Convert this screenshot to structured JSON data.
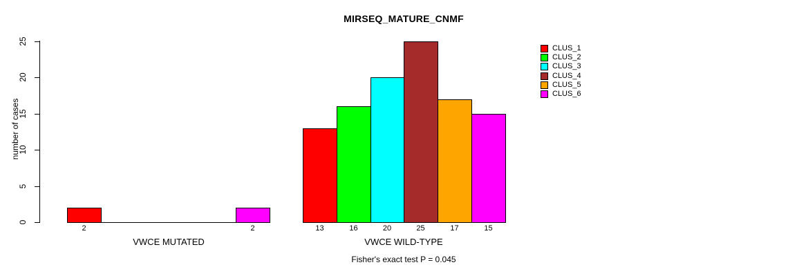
{
  "chart_data": {
    "type": "bar",
    "title": "MIRSEQ_MATURE_CNMF",
    "ylabel": "number of cases",
    "xlabel": "",
    "ylim": [
      0,
      25
    ],
    "yticks": [
      0,
      5,
      10,
      15,
      20,
      25
    ],
    "grid": false,
    "legend_position": "right",
    "legend": [
      {
        "label": "CLUS_1",
        "color": "#FF0000"
      },
      {
        "label": "CLUS_2",
        "color": "#00FF00"
      },
      {
        "label": "CLUS_3",
        "color": "#00FFFF"
      },
      {
        "label": "CLUS_4",
        "color": "#A52A2A"
      },
      {
        "label": "CLUS_5",
        "color": "#FFA500"
      },
      {
        "label": "CLUS_6",
        "color": "#FF00FF"
      }
    ],
    "groups": [
      {
        "label": "VWCE MUTATED",
        "values": [
          2,
          0,
          0,
          0,
          0,
          2
        ],
        "bar_labels": [
          "2",
          "",
          "",
          "",
          "",
          "2"
        ]
      },
      {
        "label": "VWCE WILD-TYPE",
        "values": [
          13,
          16,
          20,
          25,
          17,
          15
        ],
        "bar_labels": [
          "13",
          "16",
          "20",
          "25",
          "17",
          "15"
        ]
      }
    ],
    "annotation": "Fisher's exact test P = 0.045"
  }
}
